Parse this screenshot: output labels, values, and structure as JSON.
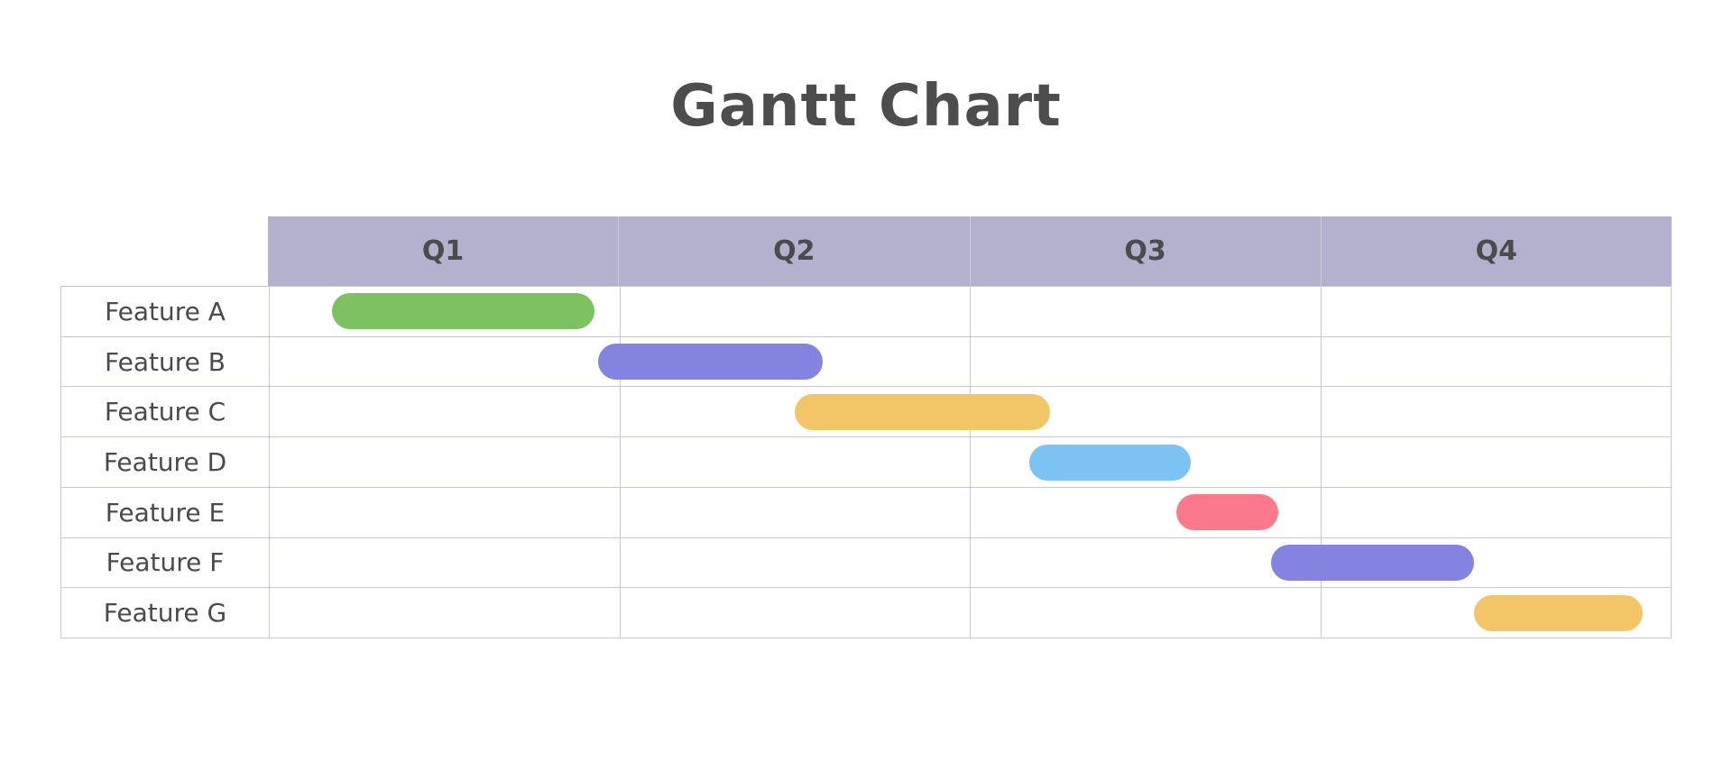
{
  "title": "Gantt Chart",
  "colors": {
    "title_text": "#4d4d4d",
    "header_background": "#b3b1cd",
    "grid_line": "#c8c6dc",
    "label_text": "#4a4a4a",
    "green_bar": "#7ec163",
    "purple_bar": "#8384e0",
    "amber_bar": "#f2c567",
    "blue_bar": "#7cc2f3",
    "pink_bar": "#fa7a8c"
  },
  "chart_data": {
    "type": "gantt-bar",
    "title": "Gantt Chart",
    "quarters": [
      "Q1",
      "Q2",
      "Q3",
      "Q4"
    ],
    "axis_units": "quarters",
    "x_range": [
      0,
      4
    ],
    "grid": true,
    "tasks": [
      {
        "label": "Feature A",
        "start": 0.18,
        "end": 0.93,
        "color": "#7ec163"
      },
      {
        "label": "Feature B",
        "start": 0.94,
        "end": 1.58,
        "color": "#8384e0"
      },
      {
        "label": "Feature C",
        "start": 1.5,
        "end": 2.23,
        "color": "#f2c567"
      },
      {
        "label": "Feature D",
        "start": 2.17,
        "end": 2.63,
        "color": "#7cc2f3"
      },
      {
        "label": "Feature E",
        "start": 2.59,
        "end": 2.88,
        "color": "#fa7a8c"
      },
      {
        "label": "Feature F",
        "start": 2.86,
        "end": 3.44,
        "color": "#8384e0"
      },
      {
        "label": "Feature G",
        "start": 3.44,
        "end": 3.92,
        "color": "#f2c567"
      }
    ]
  }
}
